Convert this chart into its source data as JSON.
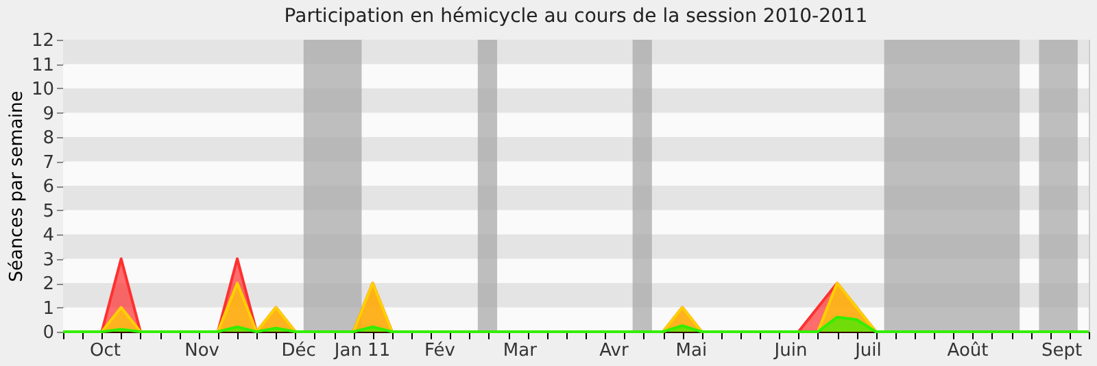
{
  "chart_data": {
    "type": "area",
    "title": "Participation en hémicycle au cours de la session 2010-2011",
    "ylabel": "Séances par semaine",
    "x": [
      "2010-09-20",
      "2010-09-27",
      "2010-10-04",
      "2010-10-11",
      "2010-10-18",
      "2010-10-25",
      "2010-11-01",
      "2010-11-08",
      "2010-11-15",
      "2010-11-22",
      "2010-11-29",
      "2010-12-06",
      "2010-12-13",
      "2010-12-20",
      "2010-12-27",
      "2011-01-03",
      "2011-01-10",
      "2011-01-17",
      "2011-01-24",
      "2011-01-31",
      "2011-02-07",
      "2011-02-14",
      "2011-02-21",
      "2011-02-28",
      "2011-03-07",
      "2011-03-14",
      "2011-03-21",
      "2011-03-28",
      "2011-04-04",
      "2011-04-11",
      "2011-04-18",
      "2011-04-25",
      "2011-05-02",
      "2011-05-09",
      "2011-05-16",
      "2011-05-23",
      "2011-05-30",
      "2011-06-06",
      "2011-06-13",
      "2011-06-20",
      "2011-06-27",
      "2011-07-04",
      "2011-07-11",
      "2011-07-18",
      "2011-07-25",
      "2011-08-01",
      "2011-08-08",
      "2011-08-15",
      "2011-08-22",
      "2011-08-29",
      "2011-09-05",
      "2011-09-12",
      "2011-09-19",
      "2011-09-26"
    ],
    "series": [
      {
        "color": "#ff3030",
        "values": [
          0,
          0,
          0,
          3,
          0,
          0,
          0,
          0,
          0,
          3,
          0,
          1,
          0,
          0,
          0,
          0,
          2,
          0,
          0,
          0,
          0,
          0,
          0,
          0,
          0,
          0,
          0,
          0,
          0,
          0,
          0,
          0,
          1,
          0,
          0,
          0,
          0,
          0,
          0,
          1,
          2,
          1,
          0,
          0,
          0,
          0,
          0,
          0,
          0,
          0,
          0,
          0,
          0,
          0
        ]
      },
      {
        "color": "#ffd000",
        "values": [
          0,
          0,
          0,
          1,
          0,
          0,
          0,
          0,
          0,
          2,
          0,
          1,
          0,
          0,
          0,
          0,
          2,
          0,
          0,
          0,
          0,
          0,
          0,
          0,
          0,
          0,
          0,
          0,
          0,
          0,
          0,
          0,
          1,
          0,
          0,
          0,
          0,
          0,
          0,
          0,
          2,
          1,
          0,
          0,
          0,
          0,
          0,
          0,
          0,
          0,
          0,
          0,
          0,
          0
        ]
      },
      {
        "color": "#33ee00",
        "values": [
          0,
          0,
          0,
          0.1,
          0,
          0,
          0,
          0,
          0,
          0.2,
          0,
          0.15,
          0,
          0,
          0,
          0,
          0.2,
          0,
          0,
          0,
          0,
          0,
          0,
          0,
          0,
          0,
          0,
          0,
          0,
          0,
          0,
          0,
          0.25,
          0,
          0,
          0,
          0,
          0,
          0,
          0,
          0.6,
          0.5,
          0,
          0,
          0,
          0,
          0,
          0,
          0,
          0,
          0,
          0,
          0,
          0
        ]
      }
    ],
    "xlim": [
      "2010-09-20",
      "2011-09-26"
    ],
    "xticks": [
      {
        "value": "2010-09-20",
        "label": null
      },
      {
        "value": "2010-09-27",
        "label": null
      },
      {
        "value": "2010-10-04",
        "label": null
      },
      {
        "value": "2010-10-05",
        "label": "Oct"
      },
      {
        "value": "2010-10-11",
        "label": null
      },
      {
        "value": "2010-10-18",
        "label": null
      },
      {
        "value": "2010-10-25",
        "label": null
      },
      {
        "value": "2010-11-01",
        "label": null
      },
      {
        "value": "2010-11-08",
        "label": null
      },
      {
        "value": "2010-11-09",
        "label": "Nov"
      },
      {
        "value": "2010-11-15",
        "label": null
      },
      {
        "value": "2010-11-22",
        "label": null
      },
      {
        "value": "2010-11-29",
        "label": null
      },
      {
        "value": "2010-12-06",
        "label": null
      },
      {
        "value": "2010-12-13",
        "label": null
      },
      {
        "value": "2010-12-14",
        "label": "Déc"
      },
      {
        "value": "2010-12-20",
        "label": null
      },
      {
        "value": "2010-12-27",
        "label": null
      },
      {
        "value": "2011-01-03",
        "label": null
      },
      {
        "value": "2011-01-06",
        "label": "Jan 11"
      },
      {
        "value": "2011-01-10",
        "label": null
      },
      {
        "value": "2011-01-17",
        "label": null
      },
      {
        "value": "2011-01-24",
        "label": null
      },
      {
        "value": "2011-01-31",
        "label": null
      },
      {
        "value": "2011-02-03",
        "label": "Fév"
      },
      {
        "value": "2011-02-07",
        "label": null
      },
      {
        "value": "2011-02-14",
        "label": null
      },
      {
        "value": "2011-02-21",
        "label": null
      },
      {
        "value": "2011-02-28",
        "label": null
      },
      {
        "value": "2011-03-04",
        "label": "Mar"
      },
      {
        "value": "2011-03-07",
        "label": null
      },
      {
        "value": "2011-03-14",
        "label": null
      },
      {
        "value": "2011-03-21",
        "label": null
      },
      {
        "value": "2011-03-28",
        "label": null
      },
      {
        "value": "2011-04-04",
        "label": null
      },
      {
        "value": "2011-04-07",
        "label": "Avr"
      },
      {
        "value": "2011-04-11",
        "label": null
      },
      {
        "value": "2011-04-18",
        "label": null
      },
      {
        "value": "2011-04-25",
        "label": null
      },
      {
        "value": "2011-05-02",
        "label": null
      },
      {
        "value": "2011-05-05",
        "label": "Mai"
      },
      {
        "value": "2011-05-09",
        "label": null
      },
      {
        "value": "2011-05-16",
        "label": null
      },
      {
        "value": "2011-05-23",
        "label": null
      },
      {
        "value": "2011-05-30",
        "label": null
      },
      {
        "value": "2011-06-06",
        "label": null
      },
      {
        "value": "2011-06-10",
        "label": "Juin"
      },
      {
        "value": "2011-06-13",
        "label": null
      },
      {
        "value": "2011-06-20",
        "label": null
      },
      {
        "value": "2011-06-27",
        "label": null
      },
      {
        "value": "2011-07-04",
        "label": null
      },
      {
        "value": "2011-07-08",
        "label": "Juil"
      },
      {
        "value": "2011-07-11",
        "label": null
      },
      {
        "value": "2011-07-18",
        "label": null
      },
      {
        "value": "2011-07-25",
        "label": null
      },
      {
        "value": "2011-08-01",
        "label": null
      },
      {
        "value": "2011-08-08",
        "label": null
      },
      {
        "value": "2011-08-13",
        "label": "Août"
      },
      {
        "value": "2011-08-15",
        "label": null
      },
      {
        "value": "2011-08-22",
        "label": null
      },
      {
        "value": "2011-08-29",
        "label": null
      },
      {
        "value": "2011-09-05",
        "label": null
      },
      {
        "value": "2011-09-12",
        "label": null
      },
      {
        "value": "2011-09-16",
        "label": "Sept"
      },
      {
        "value": "2011-09-19",
        "label": null
      },
      {
        "value": "2011-09-26",
        "label": null
      }
    ],
    "ylim": [
      0,
      12
    ],
    "yticks": [
      0,
      1,
      2,
      3,
      4,
      5,
      6,
      7,
      8,
      9,
      10,
      11,
      12
    ],
    "bands": [
      {
        "axis": "x",
        "from": "2010-12-16",
        "to": "2011-01-06",
        "color": "#aaaaaa"
      },
      {
        "axis": "x",
        "from": "2011-02-17",
        "to": "2011-02-24",
        "color": "#aaaaaa"
      },
      {
        "axis": "x",
        "from": "2011-04-14",
        "to": "2011-04-21",
        "color": "#aaaaaa"
      },
      {
        "axis": "x",
        "from": "2011-07-14",
        "to": "2011-09-01",
        "color": "#aaaaaa"
      },
      {
        "axis": "x",
        "from": "2011-09-08",
        "to": "2011-09-22",
        "color": "#aaaaaa"
      }
    ]
  }
}
